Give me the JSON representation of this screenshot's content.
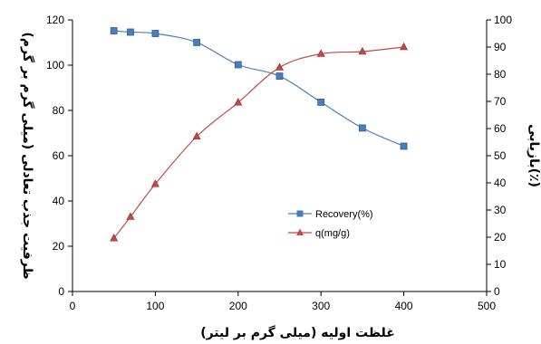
{
  "chart_data": {
    "type": "line",
    "xlabel": "غلظت اولیه (میلی گرم بر لیتر)",
    "ylabel_left": "ظرفیت جذب تعادلی (میلی گرم بر گرم)",
    "ylabel_right": "بازیابی(٪)",
    "xlim": [
      0,
      500
    ],
    "xticks": [
      0,
      100,
      200,
      300,
      400,
      500
    ],
    "ylim_left": [
      0,
      120
    ],
    "yticks_left": [
      0,
      20,
      40,
      60,
      80,
      100,
      120
    ],
    "ylim_right": [
      0,
      100
    ],
    "yticks_right": [
      0,
      10,
      20,
      30,
      40,
      50,
      60,
      70,
      80,
      90,
      100
    ],
    "grid": false,
    "legend_position": "center-right",
    "series": [
      {
        "name": "Recovery(%)",
        "axis": "right",
        "color": "#4a7ebb",
        "marker": "square",
        "x": [
          50,
          70,
          100,
          150,
          200,
          250,
          300,
          350,
          400
        ],
        "y": [
          96,
          95.5,
          95,
          91.7,
          83.5,
          79.3,
          69.7,
          60.2,
          53.5
        ]
      },
      {
        "name": "q(mg/g)",
        "axis": "left",
        "color": "#be4b48",
        "marker": "triangle",
        "x": [
          50,
          70,
          100,
          150,
          200,
          250,
          300,
          350,
          400
        ],
        "y": [
          23.5,
          33,
          47.5,
          68.5,
          83.5,
          99,
          105,
          106,
          108
        ]
      }
    ]
  }
}
